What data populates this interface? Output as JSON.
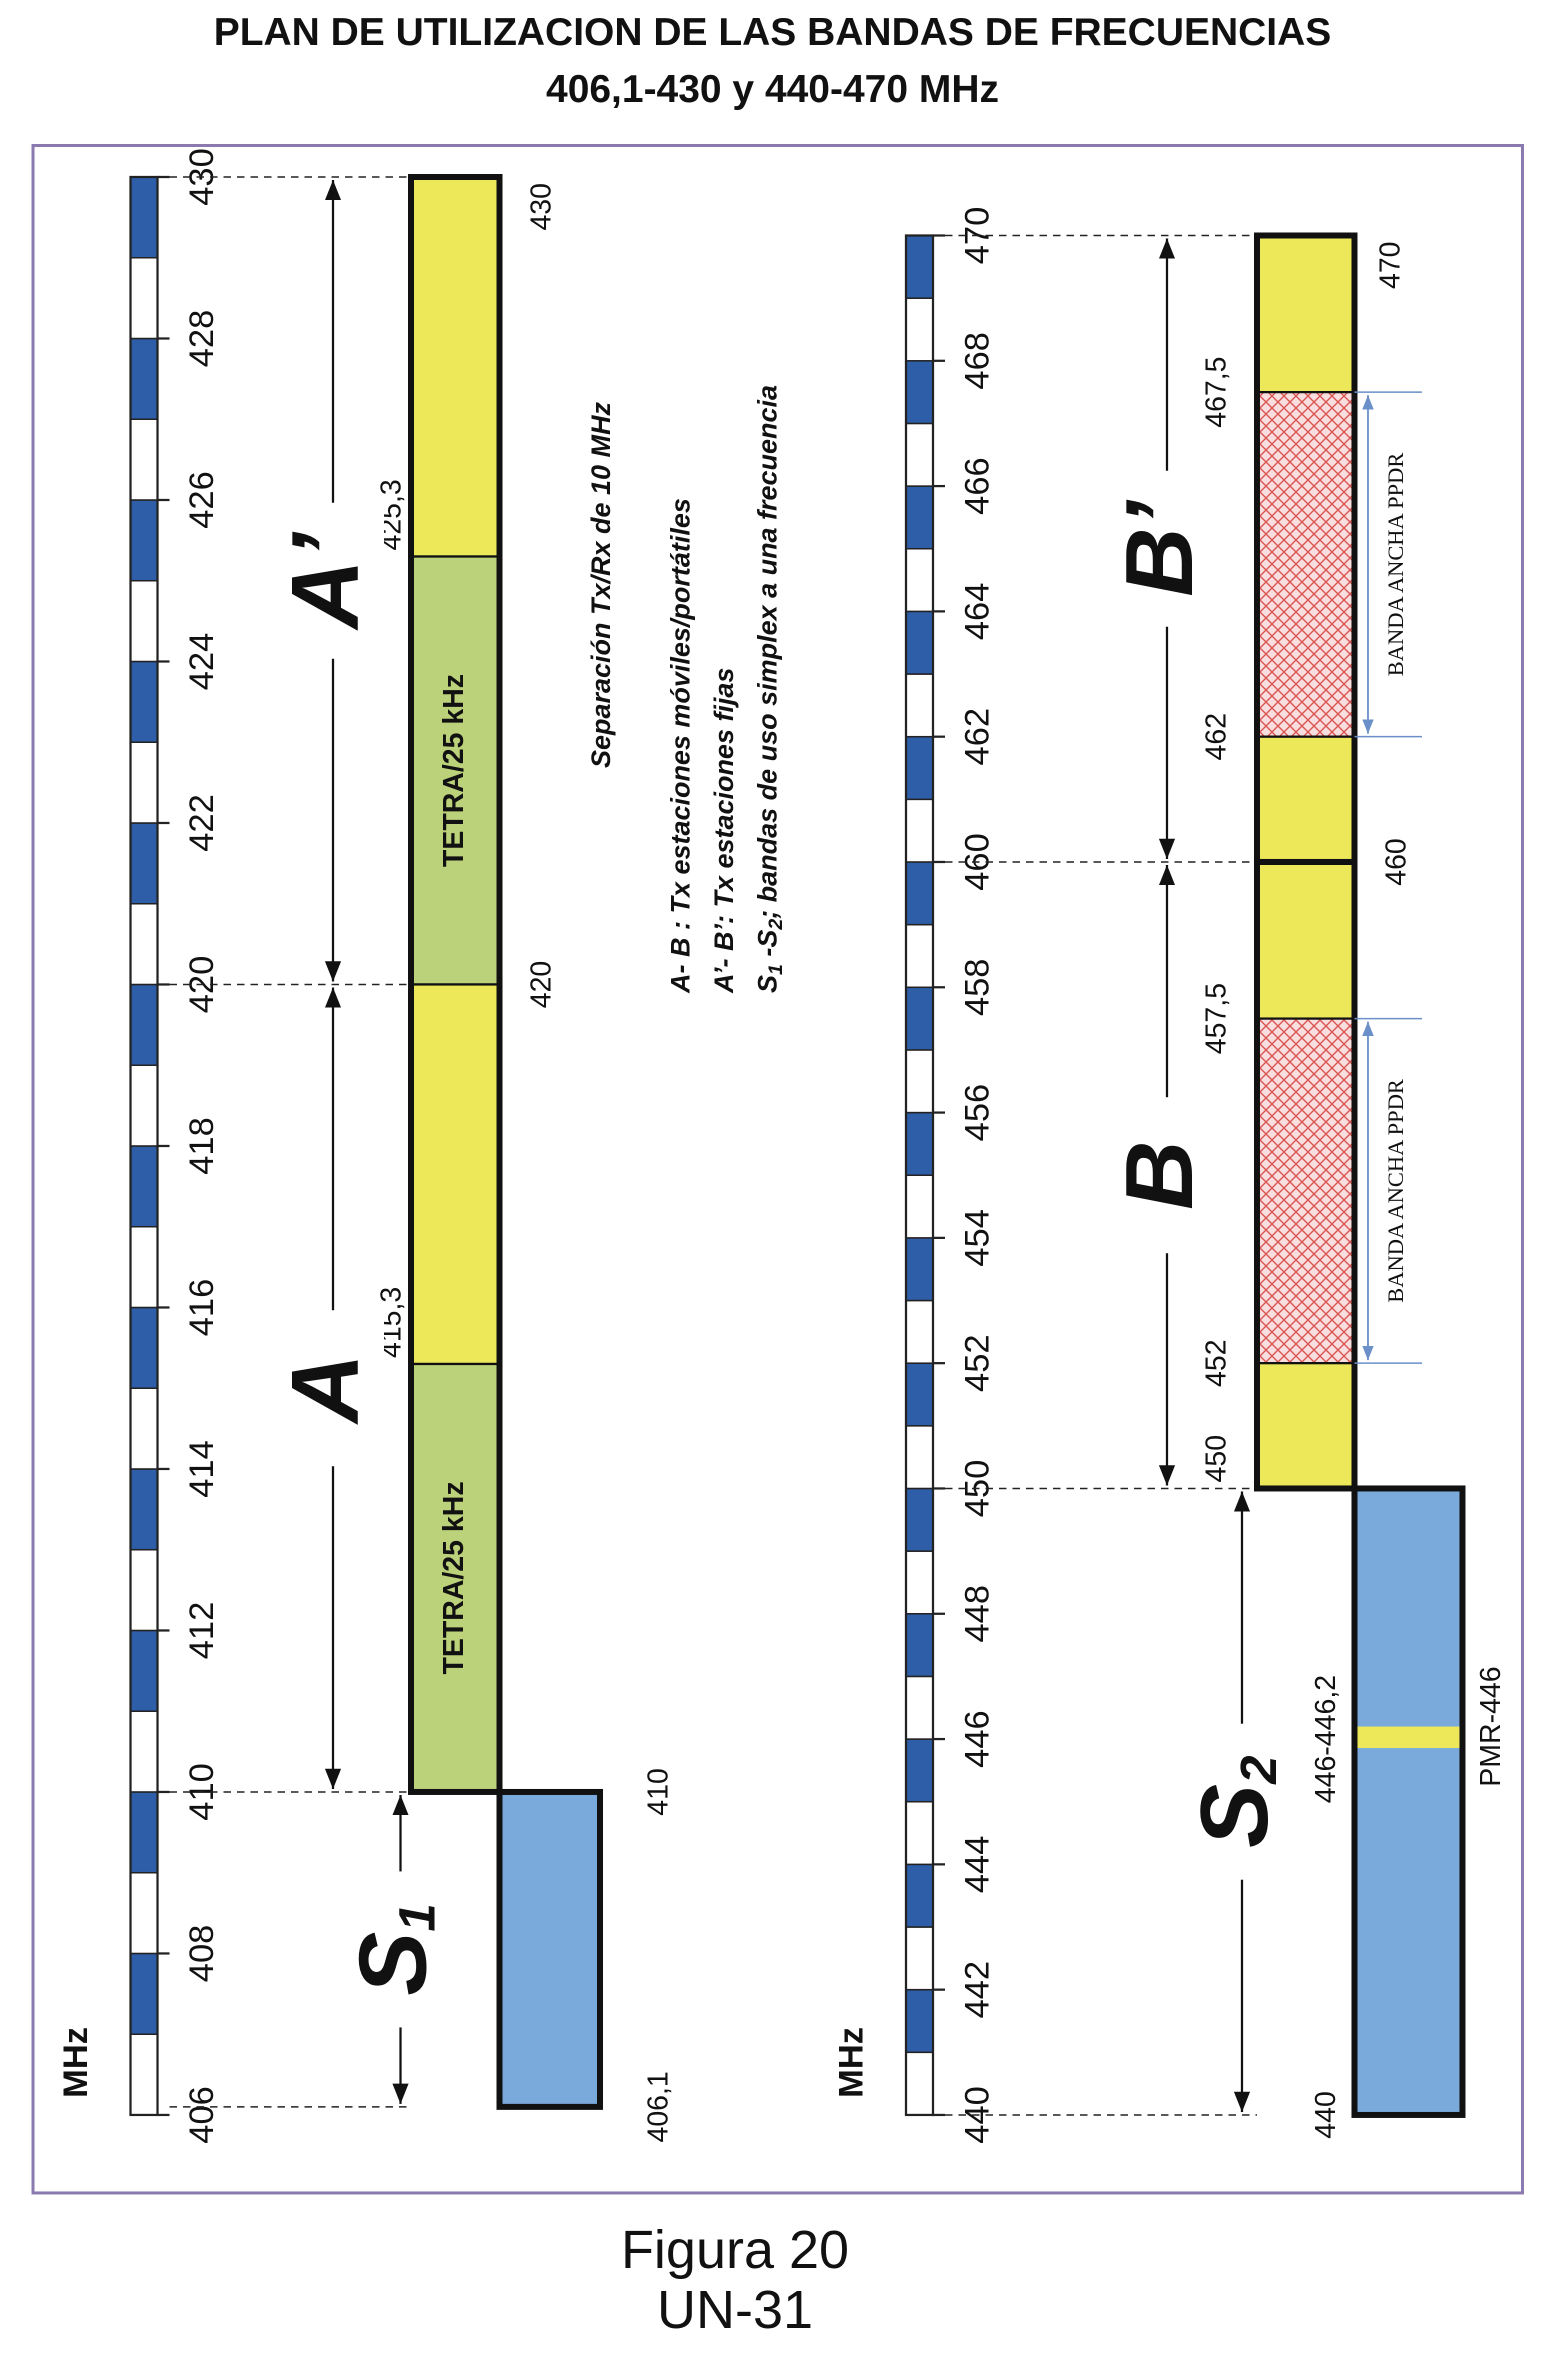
{
  "title": {
    "line1": "PLAN DE UTILIZACION DE LAS BANDAS DE FRECUENCIAS",
    "line2": "406,1-430 y 440-470 MHz"
  },
  "left_panel": {
    "unit": "MHz",
    "scale_labels": [
      "406",
      "408",
      "410",
      "412",
      "414",
      "416",
      "418",
      "420",
      "422",
      "424",
      "426",
      "428",
      "430"
    ],
    "edge_labels": [
      "430",
      "425,3",
      "420",
      "415,3",
      "410",
      "406,1"
    ],
    "band_texts": [
      "TETRA/25 kHz",
      "TETRA/25 kHz"
    ],
    "range_labels": [
      {
        "letter": "A",
        "mark": "’"
      },
      {
        "letter": "A"
      },
      {
        "letter": "S",
        "sub": "1"
      }
    ]
  },
  "notes": {
    "separation": "Separación Tx/Rx de 10 MHz",
    "line1": "A- B : Tx estaciones móviles/portátiles",
    "line2": "A’- B’: Tx estaciones fijas",
    "line3": {
      "a": "S",
      "a_sub": "1",
      "b": " -S",
      "b_sub": "2",
      "rest": "; bandas de uso simplex a una frecuencia"
    }
  },
  "right_panel": {
    "unit": "MHz",
    "scale_labels": [
      "440",
      "442",
      "444",
      "446",
      "448",
      "450",
      "452",
      "454",
      "456",
      "458",
      "460",
      "462",
      "464",
      "466",
      "468",
      "470"
    ],
    "edge_labels": [
      "470",
      "467,5",
      "462",
      "460",
      "457,5",
      "452",
      "450",
      "446-446,2",
      "440"
    ],
    "band_texts": [
      "BANDA ANCHA PPDR",
      "BANDA ANCHA PPDR"
    ],
    "pmr_label": "PMR-446",
    "range_labels": [
      {
        "letter": "B",
        "mark": "’"
      },
      {
        "letter": "B"
      },
      {
        "letter": "S",
        "sub": "2"
      }
    ]
  },
  "caption": {
    "figure": "Figura 20",
    "code": "UN-31"
  }
}
